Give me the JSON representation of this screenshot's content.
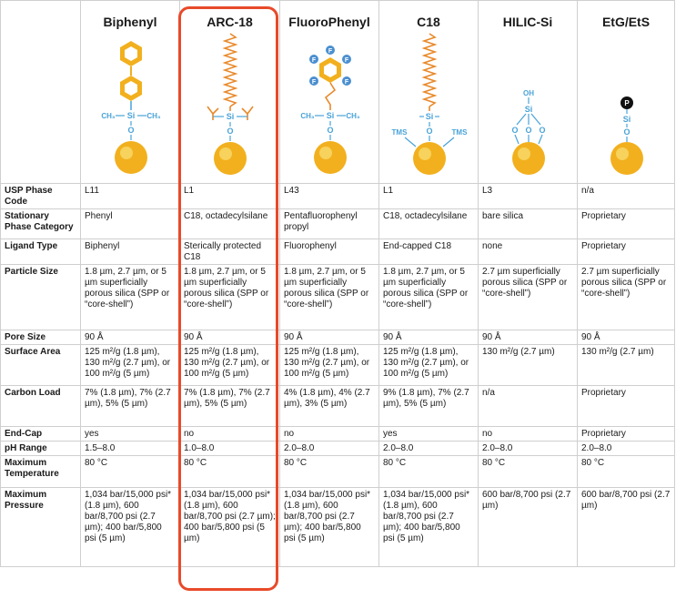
{
  "columns": [
    {
      "key": "biphenyl",
      "title": "Biphenyl"
    },
    {
      "key": "arc18",
      "title": "ARC-18"
    },
    {
      "key": "fluorophenyl",
      "title": "FluoroPhenyl"
    },
    {
      "key": "c18",
      "title": "C18"
    },
    {
      "key": "hilic",
      "title": "HILIC-Si"
    },
    {
      "key": "etg",
      "title": "EtG/EtS"
    }
  ],
  "structure_labels": {
    "ch3": "CH₃",
    "si": "Si",
    "o": "O",
    "f": "F",
    "tms": "TMS",
    "oh": "OH",
    "p": "P"
  },
  "rows": [
    {
      "label": "USP Phase Code",
      "cells": [
        "L11",
        "L1",
        "L43",
        "L1",
        "L3",
        "n/a"
      ]
    },
    {
      "label": "Stationary Phase Category",
      "cells": [
        "Phenyl",
        "C18, octadecylsilane",
        "Pentafluorophenyl propyl",
        "C18, octadecylsilane",
        "bare silica",
        "Proprietary"
      ]
    },
    {
      "label": "Ligand Type",
      "cells": [
        "Biphenyl",
        "Sterically protected C18",
        "Fluorophenyl",
        "End-capped C18",
        "none",
        "Proprietary"
      ]
    },
    {
      "label": "Particle Size",
      "cells": [
        "1.8 µm, 2.7 µm, or 5 µm superficially porous silica (SPP or “core-shell”)",
        "1.8 µm, 2.7 µm, or 5 µm superficially porous silica (SPP or “core-shell”)",
        "1.8 µm, 2.7 µm, or 5 µm superficially porous silica (SPP or “core-shell”)",
        "1.8 µm, 2.7 µm, or 5 µm superficially porous silica (SPP or “core-shell”)",
        "2.7 µm superficially porous silica (SPP or “core-shell”)",
        "2.7 µm superficially porous silica (SPP or “core-shell”)"
      ]
    },
    {
      "label": "Pore Size",
      "cells": [
        "90 Å",
        "90 Å",
        "90 Å",
        "90 Å",
        "90 Å",
        "90 Å"
      ]
    },
    {
      "label": "Surface Area",
      "cells": [
        "125 m²/g (1.8 µm), 130 m²/g (2.7 µm), or 100 m²/g (5 µm)",
        "125 m²/g (1.8 µm), 130 m²/g (2.7 µm), or 100 m²/g (5 µm)",
        "125 m²/g (1.8 µm), 130 m²/g (2.7 µm), or 100 m²/g (5 µm)",
        "125 m²/g (1.8 µm), 130 m²/g (2.7 µm), or 100 m²/g (5 µm)",
        "130 m²/g (2.7 µm)",
        "130 m²/g (2.7 µm)"
      ]
    },
    {
      "label": "Carbon Load",
      "cells": [
        "7% (1.8 µm), 7% (2.7 µm), 5% (5 µm)",
        "7% (1.8 µm), 7% (2.7 µm), 5% (5 µm)",
        "4% (1.8 µm), 4% (2.7 µm), 3% (5 µm)",
        "9% (1.8 µm), 7% (2.7 µm), 5% (5 µm)",
        "n/a",
        "Proprietary"
      ]
    },
    {
      "label": "End-Cap",
      "cells": [
        "yes",
        "no",
        "no",
        "yes",
        "no",
        "Proprietary"
      ]
    },
    {
      "label": "pH Range",
      "cells": [
        "1.5–8.0",
        "1.0–8.0",
        "2.0–8.0",
        "2.0–8.0",
        "2.0–8.0",
        "2.0–8.0"
      ]
    },
    {
      "label": "Maximum Temperature",
      "cells": [
        "80 °C",
        "80 °C",
        "80 °C",
        "80 °C",
        "80 °C",
        "80 °C"
      ]
    },
    {
      "label": "Maximum Pressure",
      "cells": [
        "1,034 bar/15,000 psi* (1.8 µm), 600 bar/8,700 psi (2.7 µm); 400 bar/5,800 psi (5 µm)",
        "1,034 bar/15,000 psi* (1.8 µm), 600 bar/8,700 psi (2.7 µm); 400 bar/5,800 psi (5 µm)",
        "1,034 bar/15,000 psi* (1.8 µm), 600 bar/8,700 psi (2.7 µm); 400 bar/5,800 psi (5 µm)",
        "1,034 bar/15,000 psi* (1.8 µm), 600 bar/8,700 psi (2.7 µm); 400 bar/5,800 psi (5 µm)",
        "600 bar/8,700 psi (2.7 µm)",
        "600 bar/8,700 psi (2.7 µm)"
      ]
    }
  ],
  "colors": {
    "highlight": "#e84a2a",
    "bond": "#4aa3d8",
    "chain": "#e8892a",
    "sphere": "#f2b01e",
    "ring": "#f2b01e",
    "fluorine": "#4a8fd0",
    "phosphate": "#111111"
  }
}
